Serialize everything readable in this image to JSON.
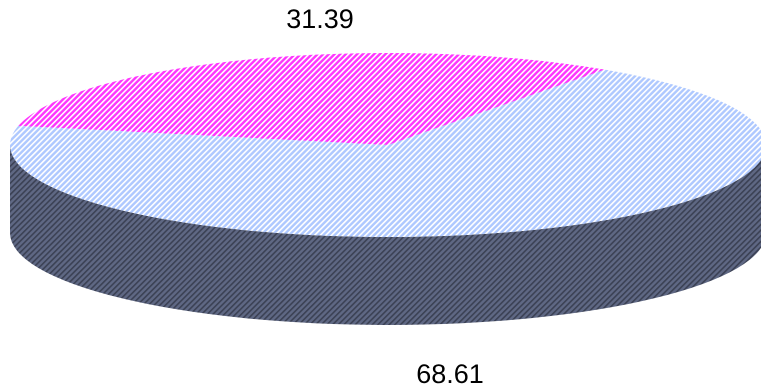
{
  "chart_data": {
    "type": "pie",
    "is_3d": true,
    "legend": "none",
    "slices": [
      {
        "value": 31.39,
        "label": "31.39",
        "color": "#ff33ff"
      },
      {
        "value": 68.61,
        "label": "68.61",
        "color": "#aec8ff"
      }
    ],
    "side_color": "#5f6884",
    "fill_pattern": "diagonal-hatch"
  }
}
